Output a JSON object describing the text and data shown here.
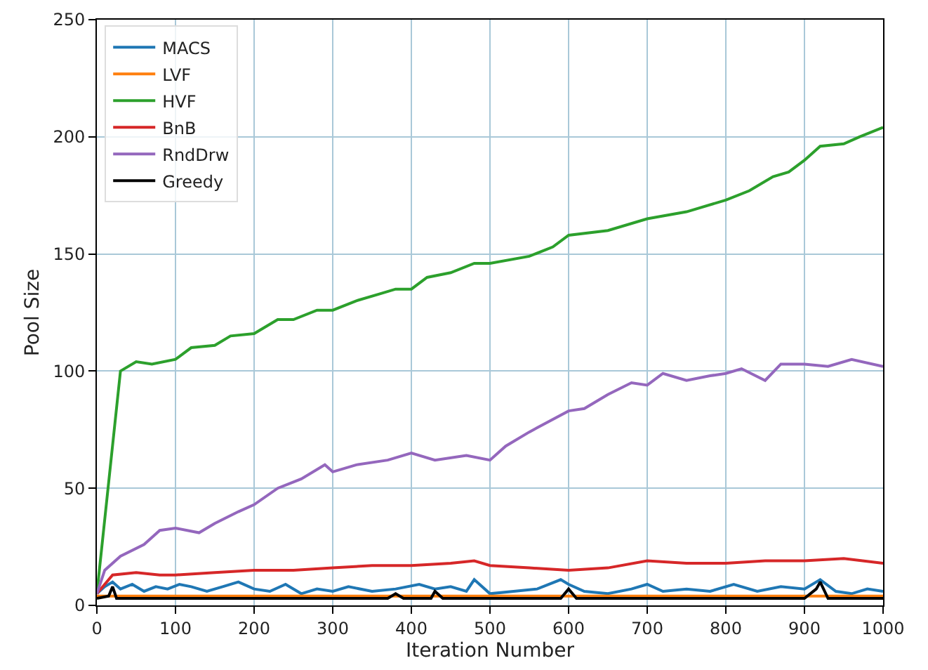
{
  "chart_data": {
    "type": "line",
    "xlabel": "Iteration Number",
    "ylabel": "Pool Size",
    "xlim": [
      0,
      1000
    ],
    "ylim": [
      0,
      250
    ],
    "xticks": [
      0,
      100,
      200,
      300,
      400,
      500,
      600,
      700,
      800,
      900,
      1000
    ],
    "yticks": [
      0,
      50,
      100,
      150,
      200,
      250
    ],
    "grid": true,
    "legend": "top left",
    "line_style": "solid",
    "series": [
      {
        "name": "MACS",
        "color": "#1f77b4",
        "x": [
          0,
          10,
          20,
          30,
          45,
          60,
          75,
          90,
          105,
          120,
          140,
          160,
          180,
          200,
          220,
          240,
          260,
          280,
          300,
          320,
          350,
          380,
          410,
          430,
          450,
          470,
          480,
          500,
          530,
          560,
          590,
          600,
          620,
          650,
          680,
          700,
          720,
          750,
          780,
          810,
          840,
          870,
          900,
          920,
          940,
          960,
          980,
          1000
        ],
        "values": [
          5,
          8,
          10,
          7,
          9,
          6,
          8,
          7,
          9,
          8,
          6,
          8,
          10,
          7,
          6,
          9,
          5,
          7,
          6,
          8,
          6,
          7,
          9,
          7,
          8,
          6,
          11,
          5,
          6,
          7,
          11,
          9,
          6,
          5,
          7,
          9,
          6,
          7,
          6,
          9,
          6,
          8,
          7,
          11,
          6,
          5,
          7,
          6
        ]
      },
      {
        "name": "LVF",
        "color": "#ff7f0e",
        "x": [
          0,
          1000
        ],
        "values": [
          4,
          4
        ]
      },
      {
        "name": "HVF",
        "color": "#2ca02c",
        "x": [
          0,
          30,
          50,
          70,
          100,
          120,
          150,
          170,
          200,
          230,
          250,
          280,
          300,
          330,
          360,
          380,
          400,
          420,
          450,
          480,
          500,
          550,
          580,
          600,
          650,
          700,
          750,
          800,
          830,
          860,
          880,
          900,
          920,
          950,
          970,
          1000
        ],
        "values": [
          5,
          100,
          104,
          103,
          105,
          110,
          111,
          115,
          116,
          122,
          122,
          126,
          126,
          130,
          133,
          135,
          135,
          140,
          142,
          146,
          146,
          149,
          153,
          158,
          160,
          165,
          168,
          173,
          177,
          183,
          185,
          190,
          196,
          197,
          200,
          204
        ]
      },
      {
        "name": "BnB",
        "color": "#d62728",
        "x": [
          0,
          20,
          50,
          80,
          100,
          150,
          200,
          250,
          300,
          350,
          400,
          450,
          480,
          500,
          550,
          600,
          650,
          700,
          750,
          800,
          850,
          900,
          950,
          1000
        ],
        "values": [
          5,
          13,
          14,
          13,
          13,
          14,
          15,
          15,
          16,
          17,
          17,
          18,
          19,
          17,
          16,
          15,
          16,
          19,
          18,
          18,
          19,
          19,
          20,
          18
        ]
      },
      {
        "name": "RndDrw",
        "color": "#9467bd",
        "x": [
          0,
          10,
          30,
          60,
          80,
          100,
          130,
          150,
          180,
          200,
          230,
          260,
          290,
          300,
          330,
          370,
          400,
          430,
          470,
          500,
          520,
          550,
          600,
          620,
          650,
          680,
          700,
          720,
          750,
          780,
          800,
          820,
          850,
          870,
          900,
          930,
          960,
          1000
        ],
        "values": [
          5,
          15,
          21,
          26,
          32,
          33,
          31,
          35,
          40,
          43,
          50,
          54,
          60,
          57,
          60,
          62,
          65,
          62,
          64,
          62,
          68,
          74,
          83,
          84,
          90,
          95,
          94,
          99,
          96,
          98,
          99,
          101,
          96,
          103,
          103,
          102,
          105,
          102
        ]
      },
      {
        "name": "Greedy",
        "color": "#000000",
        "x": [
          0,
          15,
          20,
          25,
          100,
          370,
          380,
          390,
          425,
          430,
          440,
          590,
          600,
          610,
          900,
          915,
          920,
          930,
          1000
        ],
        "values": [
          3,
          4,
          8,
          3,
          3,
          3,
          5,
          3,
          3,
          6,
          3,
          3,
          7,
          3,
          3,
          7,
          10,
          3,
          3
        ]
      }
    ]
  }
}
